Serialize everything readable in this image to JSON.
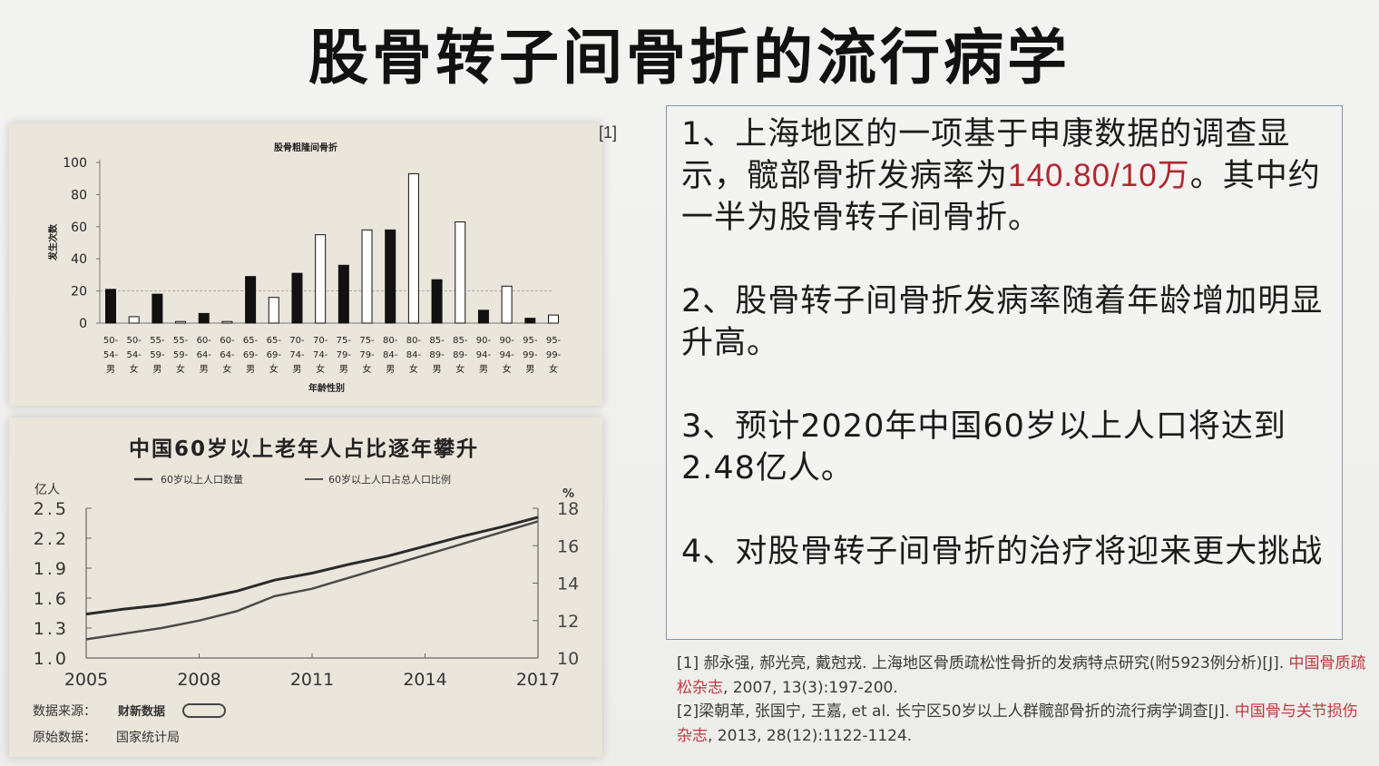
{
  "slide": {
    "title": "股骨转子间骨折的流行病学",
    "ref_marker": "[1]"
  },
  "points": [
    {
      "text_before": "1、上海地区的一项基于申康数据的调查显示，髋部骨折发病率为",
      "highlight": "140.80/10万",
      "text_after": "。其中约一半为股骨转子间骨折。"
    },
    {
      "text_before": "2、股骨转子间骨折发病率随着年龄增加明显升高。",
      "highlight": "",
      "text_after": ""
    },
    {
      "text_before": "3、预计2020年中国60岁以上人口将达到2.48亿人。",
      "highlight": "",
      "text_after": ""
    },
    {
      "text_before": "4、对股骨转子间骨折的治疗将迎来更大挑战",
      "highlight": "",
      "text_after": ""
    }
  ],
  "references": [
    {
      "pre": "[1] 郝永强, 郝光亮, 戴尅戎. 上海地区骨质疏松性骨折的发病特点研究(附5923例分析)[J]. ",
      "journal": "中国骨质疏松杂志",
      "post": ", 2007, 13(3):197-200."
    },
    {
      "pre": "[2]梁朝革, 张国宁, 王嘉, et al. 长宁区50岁以上人群髋部骨折的流行病学调查[J]. ",
      "journal": "中国骨与关节损伤杂志",
      "post": ", 2013, 28(12):1122-1124."
    }
  ],
  "colors": {
    "highlight_red": "#b3262f",
    "bar_dark": "#111111",
    "bar_open": "#ffffff",
    "box_border": "#8496b0"
  },
  "chart_data": [
    {
      "type": "bar",
      "title": "股骨粗隆间骨折",
      "xlabel": "年龄性别",
      "ylabel": "发生次数",
      "ylim": [
        0,
        100
      ],
      "yticks": [
        0,
        20,
        40,
        60,
        80,
        100
      ],
      "grid": "dashed reference line at 20",
      "categories": [
        [
          "50-",
          "54-",
          "男"
        ],
        [
          "50-",
          "54-",
          "女"
        ],
        [
          "55-",
          "59-",
          "男"
        ],
        [
          "55-",
          "59-",
          "女"
        ],
        [
          "60-",
          "64-",
          "男"
        ],
        [
          "60-",
          "64-",
          "女"
        ],
        [
          "65-",
          "69-",
          "男"
        ],
        [
          "65-",
          "69-",
          "女"
        ],
        [
          "70-",
          "74-",
          "男"
        ],
        [
          "70-",
          "74-",
          "女"
        ],
        [
          "75-",
          "79-",
          "男"
        ],
        [
          "75-",
          "79-",
          "女"
        ],
        [
          "80-",
          "84-",
          "男"
        ],
        [
          "80-",
          "84-",
          "女"
        ],
        [
          "85-",
          "89-",
          "男"
        ],
        [
          "85-",
          "89-",
          "女"
        ],
        [
          "90-",
          "94-",
          "男"
        ],
        [
          "90-",
          "94-",
          "女"
        ],
        [
          "95-",
          "99-",
          "男"
        ],
        [
          "95-",
          "99-",
          "女"
        ]
      ],
      "sex": [
        "男",
        "女",
        "男",
        "女",
        "男",
        "女",
        "男",
        "女",
        "男",
        "女",
        "男",
        "女",
        "男",
        "女",
        "男",
        "女",
        "男",
        "女",
        "男",
        "女"
      ],
      "values": [
        21,
        4,
        18,
        1,
        6,
        1,
        29,
        16,
        31,
        55,
        36,
        58,
        58,
        93,
        27,
        63,
        8,
        23,
        3,
        5
      ]
    },
    {
      "type": "line",
      "title": "中国60岁以上老年人占比逐年攀升",
      "x": [
        2005,
        2006,
        2007,
        2008,
        2009,
        2010,
        2011,
        2012,
        2013,
        2014,
        2015,
        2016,
        2017
      ],
      "xticks": [
        "2005",
        "2008",
        "2011",
        "2014",
        "2017"
      ],
      "ylabel_left": "亿人",
      "ylim_left": [
        1.0,
        2.5
      ],
      "yticks_left": [
        "1.0",
        "1.3",
        "1.6",
        "1.9",
        "2.2",
        "2.5"
      ],
      "ylabel_right": "%",
      "ylim_right": [
        10,
        18
      ],
      "yticks_right": [
        "10",
        "12",
        "14",
        "16",
        "18"
      ],
      "series": [
        {
          "name": "60岁以上人口数量",
          "axis": "left",
          "values": [
            1.44,
            1.49,
            1.53,
            1.59,
            1.67,
            1.78,
            1.85,
            1.94,
            2.02,
            2.12,
            2.22,
            2.31,
            2.41
          ]
        },
        {
          "name": "60岁以上人口占总人口比例",
          "axis": "right",
          "values": [
            11.0,
            11.3,
            11.6,
            12.0,
            12.5,
            13.3,
            13.7,
            14.3,
            14.9,
            15.5,
            16.1,
            16.7,
            17.3
          ]
        }
      ],
      "source_label": "数据来源：",
      "source_brand": "财新数据",
      "raw_label": "原始数据：",
      "raw_source": "国家统计局"
    }
  ]
}
